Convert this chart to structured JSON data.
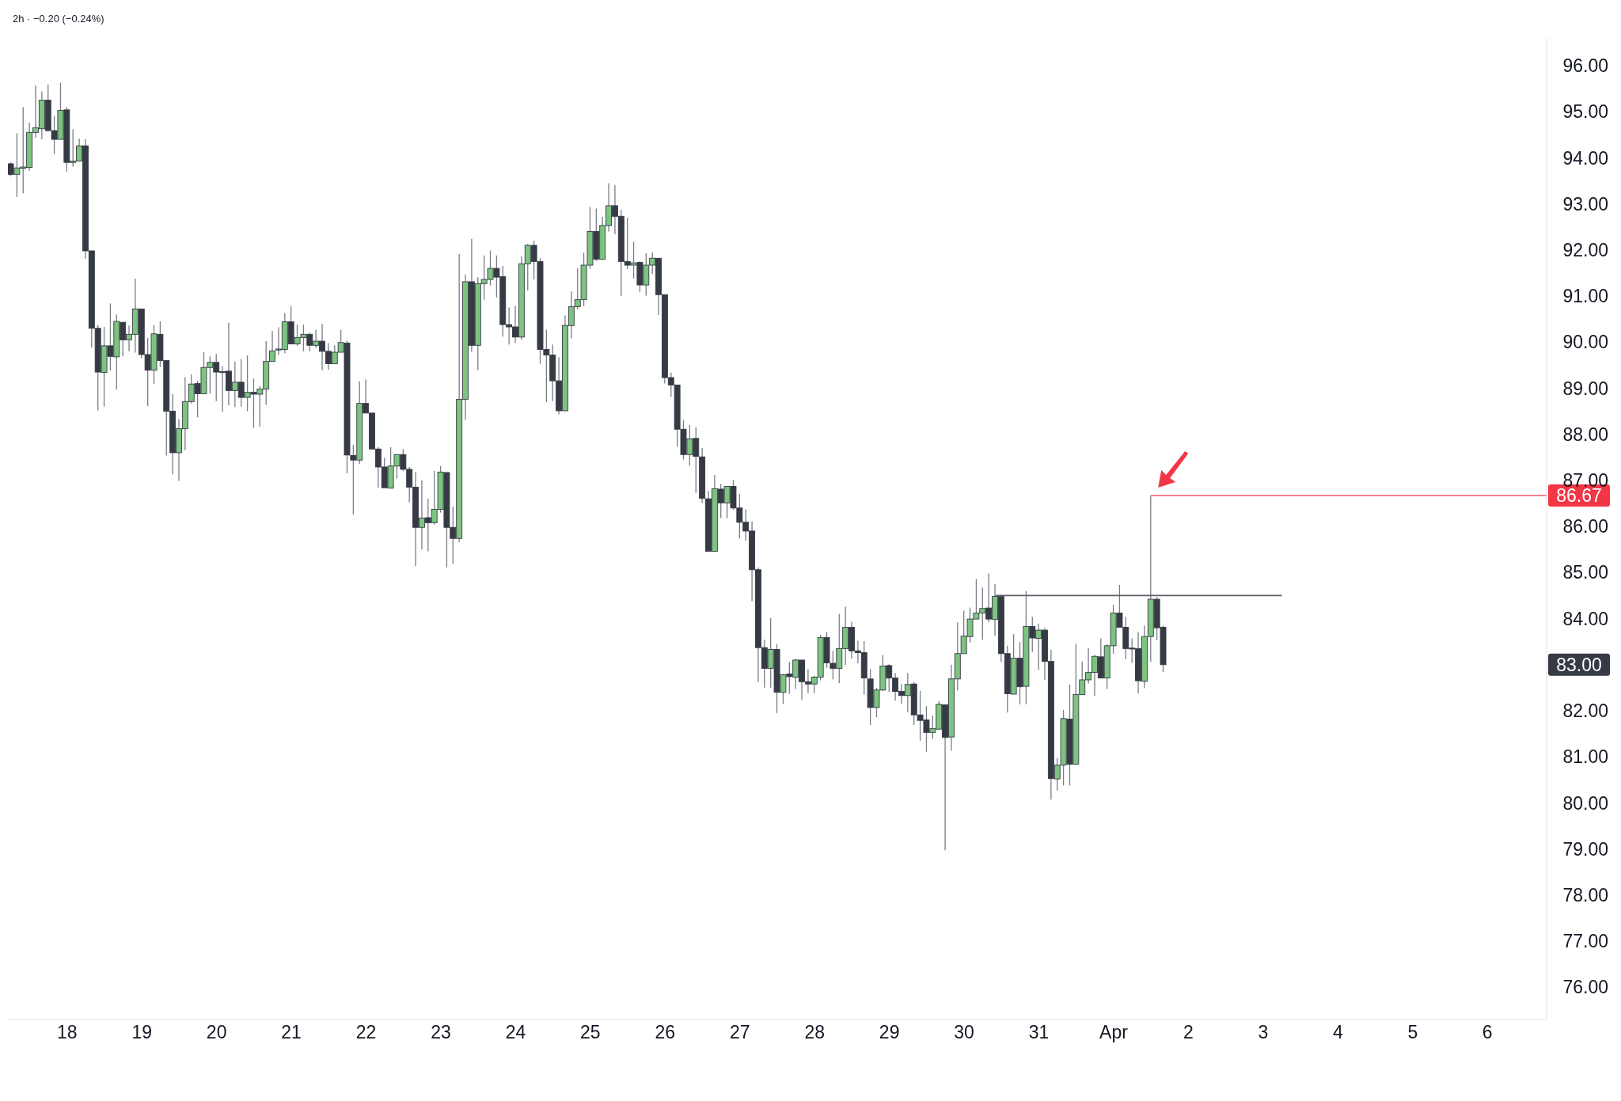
{
  "chart_data": {
    "type": "candlestick",
    "subtitle": "2h · −0.20 (−0.24%)",
    "x": [
      "--03-17T06:00",
      "--03-17T08:00",
      "--03-17T10:00",
      "--03-17T12:00",
      "--03-17T14:00",
      "--03-17T16:00",
      "--03-17T18:00",
      "--03-17T20:00",
      "--03-17T22:00",
      "--03-18T00:00",
      "--03-18T02:00",
      "--03-18T04:00",
      "--03-18T06:00",
      "--03-18T08:00",
      "--03-18T10:00",
      "--03-18T12:00",
      "--03-18T14:00",
      "--03-18T16:00",
      "--03-18T18:00",
      "--03-18T20:00",
      "--03-18T22:00",
      "--03-19T00:00",
      "--03-19T02:00",
      "--03-19T04:00",
      "--03-19T06:00",
      "--03-19T08:00",
      "--03-19T10:00",
      "--03-19T12:00",
      "--03-19T14:00",
      "--03-19T16:00",
      "--03-19T18:00",
      "--03-19T20:00",
      "--03-19T22:00",
      "--03-20T00:00",
      "--03-20T02:00",
      "--03-20T04:00",
      "--03-20T06:00",
      "--03-20T08:00",
      "--03-20T10:00",
      "--03-20T12:00",
      "--03-20T14:00",
      "--03-20T16:00",
      "--03-20T18:00",
      "--03-20T20:00",
      "--03-20T22:00",
      "--03-21T00:00",
      "--03-21T02:00",
      "--03-21T04:00",
      "--03-21T06:00",
      "--03-21T08:00",
      "--03-21T10:00",
      "--03-21T12:00",
      "--03-21T14:00",
      "--03-21T16:00",
      "--03-21T18:00",
      "--03-21T20:00",
      "--03-21T22:00",
      "--03-22T00:00",
      "--03-22T02:00",
      "--03-22T04:00",
      "--03-22T06:00",
      "--03-22T08:00",
      "--03-22T10:00",
      "--03-22T12:00",
      "--03-22T14:00",
      "--03-22T16:00",
      "--03-22T18:00",
      "--03-22T20:00",
      "--03-22T22:00",
      "--03-23T00:00",
      "--03-23T02:00",
      "--03-23T04:00",
      "--03-23T06:00",
      "--03-23T08:00",
      "--03-23T10:00",
      "--03-23T12:00",
      "--03-23T14:00",
      "--03-23T16:00",
      "--03-23T18:00",
      "--03-23T20:00",
      "--03-23T22:00",
      "--03-24T00:00",
      "--03-24T02:00",
      "--03-24T04:00",
      "--03-24T06:00",
      "--03-24T08:00",
      "--03-24T10:00",
      "--03-24T12:00",
      "--03-24T14:00",
      "--03-24T16:00",
      "--03-24T18:00",
      "--03-24T20:00",
      "--03-24T22:00",
      "--03-25T00:00",
      "--03-25T02:00",
      "--03-25T04:00",
      "--03-25T06:00",
      "--03-25T08:00",
      "--03-25T10:00",
      "--03-25T12:00",
      "--03-25T14:00",
      "--03-25T16:00",
      "--03-25T18:00",
      "--03-25T20:00",
      "--03-25T22:00",
      "--03-26T00:00",
      "--03-26T02:00",
      "--03-26T04:00",
      "--03-26T06:00",
      "--03-26T08:00",
      "--03-26T10:00",
      "--03-26T12:00",
      "--03-26T14:00",
      "--03-26T16:00",
      "--03-26T18:00",
      "--03-26T20:00",
      "--03-26T22:00",
      "--03-27T00:00",
      "--03-27T02:00",
      "--03-27T04:00",
      "--03-27T06:00",
      "--03-27T08:00",
      "--03-27T10:00",
      "--03-27T12:00",
      "--03-27T14:00",
      "--03-27T16:00",
      "--03-27T18:00",
      "--03-27T20:00",
      "--03-27T22:00",
      "--03-28T00:00",
      "--03-28T02:00",
      "--03-28T04:00",
      "--03-28T06:00",
      "--03-28T08:00",
      "--03-28T10:00",
      "--03-28T12:00",
      "--03-28T14:00",
      "--03-28T16:00",
      "--03-28T18:00",
      "--03-28T20:00",
      "--03-28T22:00",
      "--03-29T00:00",
      "--03-29T02:00",
      "--03-29T04:00",
      "--03-29T06:00",
      "--03-29T08:00",
      "--03-29T10:00",
      "--03-29T12:00",
      "--03-29T14:00",
      "--03-29T16:00",
      "--03-29T18:00",
      "--03-29T20:00",
      "--03-29T22:00",
      "--03-30T00:00",
      "--03-30T02:00",
      "--03-30T04:00",
      "--03-30T06:00",
      "--03-30T08:00",
      "--03-30T10:00",
      "--03-30T12:00",
      "--03-30T14:00",
      "--03-30T16:00",
      "--03-30T18:00",
      "--03-30T20:00",
      "--03-30T22:00",
      "--03-31T00:00",
      "--03-31T02:00",
      "--03-31T04:00",
      "--03-31T06:00",
      "--03-31T08:00",
      "--03-31T10:00",
      "--03-31T12:00",
      "--03-31T14:00",
      "--03-31T16:00",
      "--03-31T18:00",
      "--03-31T20:00",
      "--03-31T22:00",
      "--04-01T00:00",
      "--04-01T02:00",
      "--04-01T04:00",
      "--04-01T06:00",
      "--04-01T08:00",
      "--04-01T10:00",
      "--04-01T12:00",
      "--04-01T14:00",
      "--04-01T16:00"
    ],
    "ohlc": [
      [
        93.87,
        93.9,
        93.6,
        93.64
      ],
      [
        93.64,
        94.53,
        93.15,
        93.78
      ],
      [
        93.77,
        95.1,
        93.23,
        93.8
      ],
      [
        93.79,
        94.76,
        93.72,
        94.55
      ],
      [
        94.55,
        95.57,
        94.43,
        94.65
      ],
      [
        94.63,
        95.44,
        94.4,
        95.25
      ],
      [
        95.25,
        95.59,
        94.57,
        94.59
      ],
      [
        94.59,
        94.91,
        94.08,
        94.4
      ],
      [
        94.4,
        95.63,
        94.4,
        95.03
      ],
      [
        95.04,
        95.1,
        93.7,
        93.9
      ],
      [
        93.9,
        94.62,
        93.81,
        93.93
      ],
      [
        93.93,
        94.42,
        93.93,
        94.26
      ],
      [
        94.26,
        94.4,
        91.81,
        91.98
      ],
      [
        91.98,
        91.98,
        89.88,
        90.3
      ],
      [
        90.3,
        90.37,
        88.52,
        89.35
      ],
      [
        89.34,
        90.33,
        88.6,
        89.92
      ],
      [
        89.92,
        90.84,
        89.39,
        89.69
      ],
      [
        89.68,
        90.6,
        88.97,
        90.45
      ],
      [
        90.43,
        90.43,
        89.69,
        90.05
      ],
      [
        90.05,
        90.36,
        89.8,
        90.17
      ],
      [
        90.17,
        91.38,
        89.77,
        90.72
      ],
      [
        90.72,
        90.72,
        89.65,
        89.73
      ],
      [
        89.73,
        90.09,
        88.61,
        89.39
      ],
      [
        89.39,
        90.37,
        89.09,
        90.18
      ],
      [
        90.17,
        90.45,
        89.46,
        89.6
      ],
      [
        89.6,
        89.6,
        87.54,
        88.5
      ],
      [
        88.5,
        88.87,
        87.13,
        87.6
      ],
      [
        87.6,
        88.33,
        86.99,
        88.12
      ],
      [
        88.12,
        89.24,
        87.65,
        88.71
      ],
      [
        88.71,
        89.3,
        88.67,
        89.09
      ],
      [
        89.1,
        89.16,
        88.37,
        88.88
      ],
      [
        88.88,
        89.78,
        88.88,
        89.45
      ],
      [
        89.45,
        89.69,
        88.88,
        89.56
      ],
      [
        89.56,
        89.74,
        88.72,
        89.35
      ],
      [
        89.36,
        89.48,
        88.49,
        89.35
      ],
      [
        89.37,
        90.42,
        88.63,
        88.95
      ],
      [
        88.95,
        89.58,
        88.59,
        89.13
      ],
      [
        89.13,
        89.63,
        88.6,
        88.8
      ],
      [
        88.8,
        89.71,
        88.5,
        88.91
      ],
      [
        88.91,
        89.21,
        88.14,
        88.87
      ],
      [
        88.87,
        89.04,
        88.16,
        88.98
      ],
      [
        88.98,
        90.02,
        88.64,
        89.58
      ],
      [
        89.58,
        90.24,
        89.58,
        89.81
      ],
      [
        89.83,
        90.32,
        89.72,
        89.85
      ],
      [
        89.84,
        90.63,
        89.76,
        90.44
      ],
      [
        90.44,
        90.78,
        89.96,
        89.96
      ],
      [
        89.96,
        90.38,
        89.92,
        90.1
      ],
      [
        90.1,
        90.38,
        89.8,
        90.17
      ],
      [
        90.17,
        90.21,
        89.8,
        89.93
      ],
      [
        89.93,
        90.27,
        89.87,
        90.02
      ],
      [
        90.02,
        90.4,
        89.39,
        89.8
      ],
      [
        89.8,
        89.98,
        89.4,
        89.53
      ],
      [
        89.53,
        89.93,
        89.53,
        89.78
      ],
      [
        89.78,
        90.27,
        89.78,
        89.99
      ],
      [
        89.98,
        90.03,
        87.15,
        87.55
      ],
      [
        87.54,
        87.77,
        86.26,
        87.44
      ],
      [
        87.44,
        89.15,
        87.36,
        88.67
      ],
      [
        88.67,
        89.19,
        88.46,
        88.46
      ],
      [
        88.46,
        88.46,
        87.68,
        87.68
      ],
      [
        87.68,
        87.72,
        86.84,
        87.29
      ],
      [
        87.29,
        87.49,
        86.84,
        86.84
      ],
      [
        86.83,
        87.72,
        86.83,
        87.31
      ],
      [
        87.31,
        87.56,
        87.04,
        87.56
      ],
      [
        87.56,
        87.68,
        87.2,
        87.24
      ],
      [
        87.24,
        87.29,
        86.52,
        86.85
      ],
      [
        86.85,
        87.18,
        85.14,
        85.98
      ],
      [
        85.98,
        87,
        85.5,
        86.18
      ],
      [
        86.19,
        86.6,
        85.46,
        86.08
      ],
      [
        86.08,
        87.21,
        86.04,
        86.37
      ],
      [
        86.37,
        87.31,
        86.3,
        87.18
      ],
      [
        87.17,
        87.17,
        85.11,
        85.98
      ],
      [
        85.98,
        86.43,
        85.19,
        85.74
      ],
      [
        85.74,
        91.91,
        85.66,
        88.76
      ],
      [
        88.76,
        91.47,
        88.31,
        91.31
      ],
      [
        91.31,
        92.24,
        89.79,
        89.93
      ],
      [
        89.93,
        91.41,
        89.39,
        91.27
      ],
      [
        91.27,
        91.88,
        90.92,
        91.36
      ],
      [
        91.36,
        91.99,
        91.23,
        91.6
      ],
      [
        91.6,
        91.88,
        90.97,
        91.41
      ],
      [
        91.42,
        91.65,
        90.12,
        90.38
      ],
      [
        90.38,
        90.75,
        89.95,
        90.33
      ],
      [
        90.33,
        90.79,
        89.98,
        90.11
      ],
      [
        90.11,
        91.86,
        90.05,
        91.7
      ],
      [
        91.7,
        92.13,
        91.12,
        92.1
      ],
      [
        92.1,
        92.2,
        91.36,
        91.75
      ],
      [
        91.75,
        91.83,
        89.53,
        89.84
      ],
      [
        89.84,
        90.27,
        88.7,
        89.72
      ],
      [
        89.72,
        89.95,
        88.72,
        89.16
      ],
      [
        89.16,
        89.67,
        88.43,
        88.51
      ],
      [
        88.51,
        90.58,
        88.51,
        90.36
      ],
      [
        90.36,
        91.1,
        90.08,
        90.77
      ],
      [
        90.77,
        91.6,
        90.71,
        90.92
      ],
      [
        90.92,
        91.94,
        90.78,
        91.67
      ],
      [
        91.67,
        92.93,
        91.59,
        92.4
      ],
      [
        92.4,
        92.9,
        91.76,
        91.8
      ],
      [
        91.8,
        92.72,
        91.8,
        92.53
      ],
      [
        92.53,
        93.45,
        92.4,
        92.96
      ],
      [
        92.96,
        93.41,
        92.34,
        92.73
      ],
      [
        92.73,
        92.87,
        91,
        91.75
      ],
      [
        91.75,
        92.7,
        91.59,
        91.67
      ],
      [
        91.67,
        92.18,
        91.38,
        91.72
      ],
      [
        91.73,
        91.75,
        91.09,
        91.24
      ],
      [
        91.24,
        91.93,
        91.01,
        91.67
      ],
      [
        91.67,
        91.95,
        91.48,
        91.82
      ],
      [
        91.82,
        91.82,
        90.59,
        91.03
      ],
      [
        91.03,
        91.03,
        89.1,
        89.23
      ],
      [
        89.23,
        89.34,
        88.81,
        89.07
      ],
      [
        89.07,
        89.07,
        87.73,
        88.11
      ],
      [
        88.11,
        88.31,
        87.45,
        87.56
      ],
      [
        87.56,
        88.2,
        87.32,
        87.9
      ],
      [
        87.91,
        88.15,
        86.73,
        87.52
      ],
      [
        87.51,
        87.7,
        86.51,
        86.61
      ],
      [
        86.6,
        86.77,
        85.46,
        85.46
      ],
      [
        85.46,
        87.12,
        85.46,
        86.82
      ],
      [
        86.81,
        86.92,
        86.18,
        86.51
      ],
      [
        86.51,
        86.87,
        86.18,
        86.87
      ],
      [
        86.87,
        87.01,
        86.36,
        86.4
      ],
      [
        86.4,
        86.71,
        85.74,
        86.09
      ],
      [
        86.09,
        86.37,
        85.69,
        85.9
      ],
      [
        85.9,
        86.11,
        84.38,
        85.06
      ],
      [
        85.06,
        85.11,
        82.62,
        83.37
      ],
      [
        83.37,
        83.54,
        82.5,
        82.92
      ],
      [
        82.92,
        84.01,
        82.5,
        83.33
      ],
      [
        83.33,
        83.45,
        81.95,
        82.4
      ],
      [
        82.4,
        82.8,
        82.15,
        82.78
      ],
      [
        82.8,
        83.06,
        82.37,
        82.74
      ],
      [
        82.73,
        83.13,
        82.47,
        83.1
      ],
      [
        83.1,
        83.1,
        82.24,
        82.63
      ],
      [
        82.63,
        82.9,
        82.38,
        82.58
      ],
      [
        82.58,
        82.76,
        82.38,
        82.73
      ],
      [
        82.73,
        83.65,
        82.66,
        83.59
      ],
      [
        83.59,
        83.71,
        82.93,
        83.04
      ],
      [
        83.03,
        83.3,
        82.68,
        82.92
      ],
      [
        82.92,
        84.1,
        82.6,
        83.35
      ],
      [
        83.35,
        84.26,
        82.99,
        83.81
      ],
      [
        83.81,
        83.93,
        83.13,
        83.3
      ],
      [
        83.3,
        83.52,
        83.03,
        83.26
      ],
      [
        83.26,
        83.51,
        82.35,
        82.71
      ],
      [
        82.69,
        82.9,
        81.69,
        82.07
      ],
      [
        82.07,
        82.5,
        81.86,
        82.45
      ],
      [
        82.45,
        83.21,
        82.43,
        82.97
      ],
      [
        82.98,
        83.01,
        82.41,
        82.71
      ],
      [
        82.71,
        82.82,
        82.22,
        82.42
      ],
      [
        82.42,
        82.58,
        82.15,
        82.33
      ],
      [
        82.33,
        82.82,
        81.97,
        82.57
      ],
      [
        82.58,
        82.62,
        81.69,
        81.91
      ],
      [
        81.91,
        82.43,
        81.35,
        81.79
      ],
      [
        81.8,
        82.1,
        81.11,
        81.53
      ],
      [
        81.53,
        81.9,
        81.39,
        81.61
      ],
      [
        81.6,
        82.21,
        81.6,
        82.14
      ],
      [
        82.13,
        82.13,
        78.97,
        81.42
      ],
      [
        81.43,
        83,
        81.13,
        82.69
      ],
      [
        82.69,
        83.92,
        82.44,
        83.24
      ],
      [
        83.24,
        84.17,
        83.24,
        83.62
      ],
      [
        83.61,
        84.24,
        83.48,
        83.99
      ],
      [
        83.99,
        84.86,
        83.99,
        84.12
      ],
      [
        84.12,
        84.67,
        83.54,
        84.22
      ],
      [
        84.23,
        84.98,
        83.92,
        83.99
      ],
      [
        83.98,
        84.75,
        83.63,
        84.48
      ],
      [
        84.48,
        84.51,
        83.06,
        83.24
      ],
      [
        83.24,
        83.41,
        81.96,
        82.37
      ],
      [
        82.36,
        83.66,
        82.36,
        83.14
      ],
      [
        83.14,
        83.49,
        82.14,
        82.52
      ],
      [
        82.53,
        84.6,
        82.14,
        83.83
      ],
      [
        83.83,
        84.04,
        83.27,
        83.58
      ],
      [
        83.57,
        83.89,
        82.89,
        83.75
      ],
      [
        83.75,
        83.8,
        82.67,
        83.07
      ],
      [
        83.07,
        83.32,
        80.07,
        80.53
      ],
      [
        80.52,
        80.97,
        80.27,
        80.82
      ],
      [
        80.82,
        82.02,
        80.38,
        81.83
      ],
      [
        81.82,
        82.57,
        80.38,
        80.84
      ],
      [
        80.84,
        83.45,
        80.84,
        82.35
      ],
      [
        82.35,
        83.07,
        82.35,
        82.67
      ],
      [
        82.67,
        83.36,
        82.59,
        82.83
      ],
      [
        82.83,
        83.22,
        82.32,
        83.18
      ],
      [
        83.17,
        83.57,
        82.71,
        82.71
      ],
      [
        82.71,
        83.44,
        82.47,
        83.41
      ],
      [
        83.41,
        84.3,
        83.24,
        84.12
      ],
      [
        84.12,
        84.73,
        83.81,
        83.81
      ],
      [
        83.81,
        84.04,
        83.12,
        83.35
      ],
      [
        83.36,
        83.57,
        83.04,
        83.35
      ],
      [
        83.35,
        83.71,
        82.38,
        82.65
      ],
      [
        82.64,
        83.85,
        82.49,
        83.61
      ],
      [
        83.61,
        86.67,
        83.06,
        84.42
      ],
      [
        84.42,
        84.47,
        83.53,
        83.8
      ],
      [
        83.81,
        83.85,
        82.84,
        83
      ]
    ],
    "series": [
      {
        "type": "line",
        "x": [
          "--03-30T10:00",
          "--04-03T06:00"
        ],
        "values": [
          84.5,
          84.5
        ],
        "color": "#5d606b"
      }
    ],
    "xlim": [
      "--03-17T05:00",
      "--04-06T19:00"
    ],
    "xticks": [
      {
        "value": "--03-18",
        "label": "18"
      },
      {
        "value": "--03-19",
        "label": "19"
      },
      {
        "value": "--03-20",
        "label": "20"
      },
      {
        "value": "--03-21",
        "label": "21"
      },
      {
        "value": "--03-22",
        "label": "22"
      },
      {
        "value": "--03-23",
        "label": "23"
      },
      {
        "value": "--03-24",
        "label": "24"
      },
      {
        "value": "--03-25",
        "label": "25"
      },
      {
        "value": "--03-26",
        "label": "26"
      },
      {
        "value": "--03-27",
        "label": "27"
      },
      {
        "value": "--03-28",
        "label": "28"
      },
      {
        "value": "--03-29",
        "label": "29"
      },
      {
        "value": "--03-30",
        "label": "30"
      },
      {
        "value": "--03-31",
        "label": "31"
      },
      {
        "value": "--04-01",
        "label": "Apr"
      },
      {
        "value": "--04-02",
        "label": "2"
      },
      {
        "value": "--04-03",
        "label": "3"
      },
      {
        "value": "--04-04",
        "label": "4"
      },
      {
        "value": "--04-05",
        "label": "5"
      },
      {
        "value": "--04-06",
        "label": "6"
      }
    ],
    "ylim": [
      75.3,
      96.6
    ],
    "yticks": [
      {
        "value": 76,
        "label": "76.00"
      },
      {
        "value": 77,
        "label": "77.00"
      },
      {
        "value": 78,
        "label": "78.00"
      },
      {
        "value": 79,
        "label": "79.00"
      },
      {
        "value": 80,
        "label": "80.00"
      },
      {
        "value": 81,
        "label": "81.00"
      },
      {
        "value": 82,
        "label": "82.00"
      },
      {
        "value": 84,
        "label": "84.00"
      },
      {
        "value": 85,
        "label": "85.00"
      },
      {
        "value": 86,
        "label": "86.00"
      },
      {
        "value": 87,
        "label": "87.00"
      },
      {
        "value": 88,
        "label": "88.00"
      },
      {
        "value": 89,
        "label": "89.00"
      },
      {
        "value": 90,
        "label": "90.00"
      },
      {
        "value": 91,
        "label": "91.00"
      },
      {
        "value": 92,
        "label": "92.00"
      },
      {
        "value": 93,
        "label": "93.00"
      },
      {
        "value": 94,
        "label": "94.00"
      },
      {
        "value": 95,
        "label": "95.00"
      },
      {
        "value": 96,
        "label": "96.00"
      }
    ],
    "ref_lines": [
      {
        "axis": "y",
        "value": 86.67,
        "label": "86.67",
        "color": "#f23645"
      }
    ],
    "annotations": [
      "83.00"
    ]
  }
}
